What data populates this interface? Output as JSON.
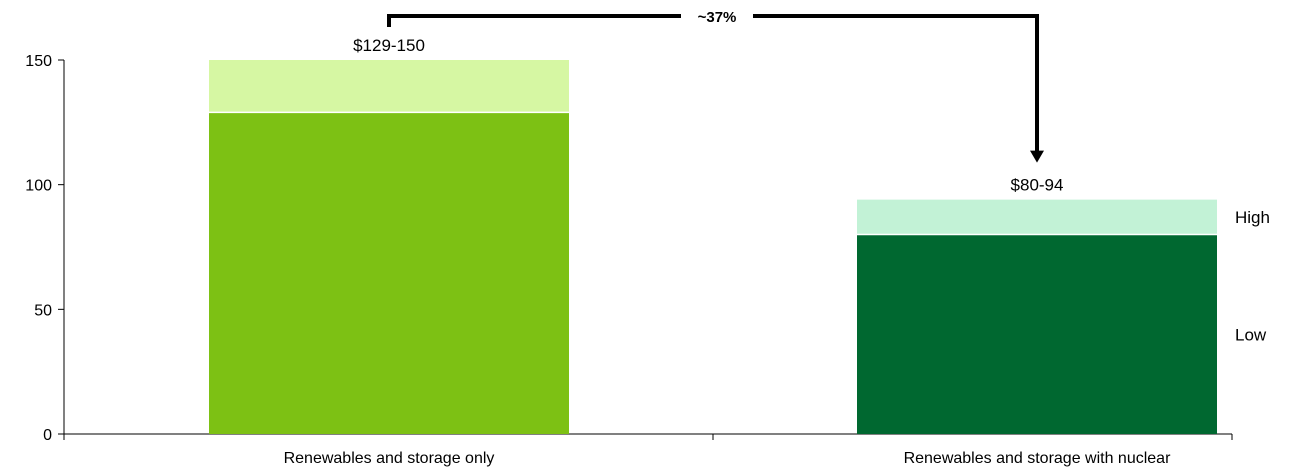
{
  "chart_data": {
    "type": "bar",
    "stacked": true,
    "categories": [
      "Renewables and storage only",
      "Renewables and storage with nuclear"
    ],
    "series": [
      {
        "name": "Low",
        "values": [
          129,
          80
        ]
      },
      {
        "name": "High",
        "values": [
          21,
          14
        ]
      }
    ],
    "totals": [
      150,
      94
    ],
    "data_labels": [
      "$129-150",
      "$80-94"
    ],
    "ylim": [
      0,
      150
    ],
    "yticks": [
      0,
      50,
      100,
      150
    ],
    "xlabel": "",
    "ylabel": "",
    "title": "",
    "legend_position": "right",
    "annotation": {
      "text": "~37%",
      "from_category": 0,
      "to_category": 1
    },
    "grid": false,
    "colors": {
      "cat0_low": "#7dc114",
      "cat0_high": "#d6f7a3",
      "cat1_low": "#006830",
      "cat1_high": "#c2f2d6",
      "axis": "#000000",
      "arrow": "#000000"
    }
  }
}
